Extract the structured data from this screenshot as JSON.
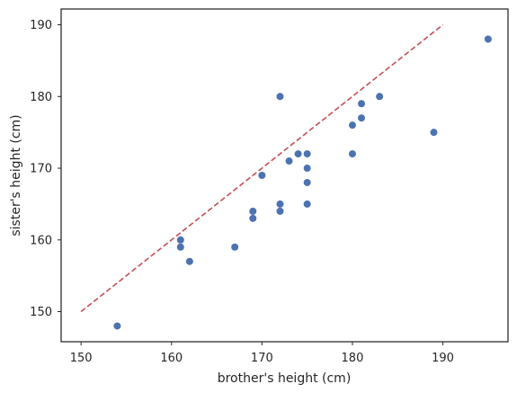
{
  "chart_data": {
    "type": "scatter",
    "title": "",
    "xlabel": "brother's height (cm)",
    "ylabel": "sister's height (cm)",
    "xlim": [
      147.8,
      197.2
    ],
    "ylim": [
      145.8,
      192.2
    ],
    "xticks": [
      150,
      160,
      170,
      180,
      190
    ],
    "yticks": [
      150,
      160,
      170,
      180,
      190
    ],
    "grid": false,
    "point_color": "#4c72b0",
    "series": [
      {
        "points": [
          [
            154,
            148
          ],
          [
            161,
            160
          ],
          [
            161,
            159
          ],
          [
            162,
            157
          ],
          [
            167,
            159
          ],
          [
            169,
            164
          ],
          [
            169,
            163
          ],
          [
            170,
            169
          ],
          [
            172,
            180
          ],
          [
            172,
            165
          ],
          [
            172,
            164
          ],
          [
            173,
            171
          ],
          [
            174,
            172
          ],
          [
            175,
            172
          ],
          [
            175,
            170
          ],
          [
            175,
            168
          ],
          [
            175,
            165
          ],
          [
            180,
            176
          ],
          [
            180,
            172
          ],
          [
            181,
            179
          ],
          [
            181,
            177
          ],
          [
            183,
            180
          ],
          [
            189,
            175
          ],
          [
            195,
            188
          ]
        ]
      }
    ],
    "reference_line": {
      "style": "dashed",
      "color": "#c44e52",
      "points": [
        [
          150,
          150
        ],
        [
          190,
          190
        ]
      ]
    }
  }
}
